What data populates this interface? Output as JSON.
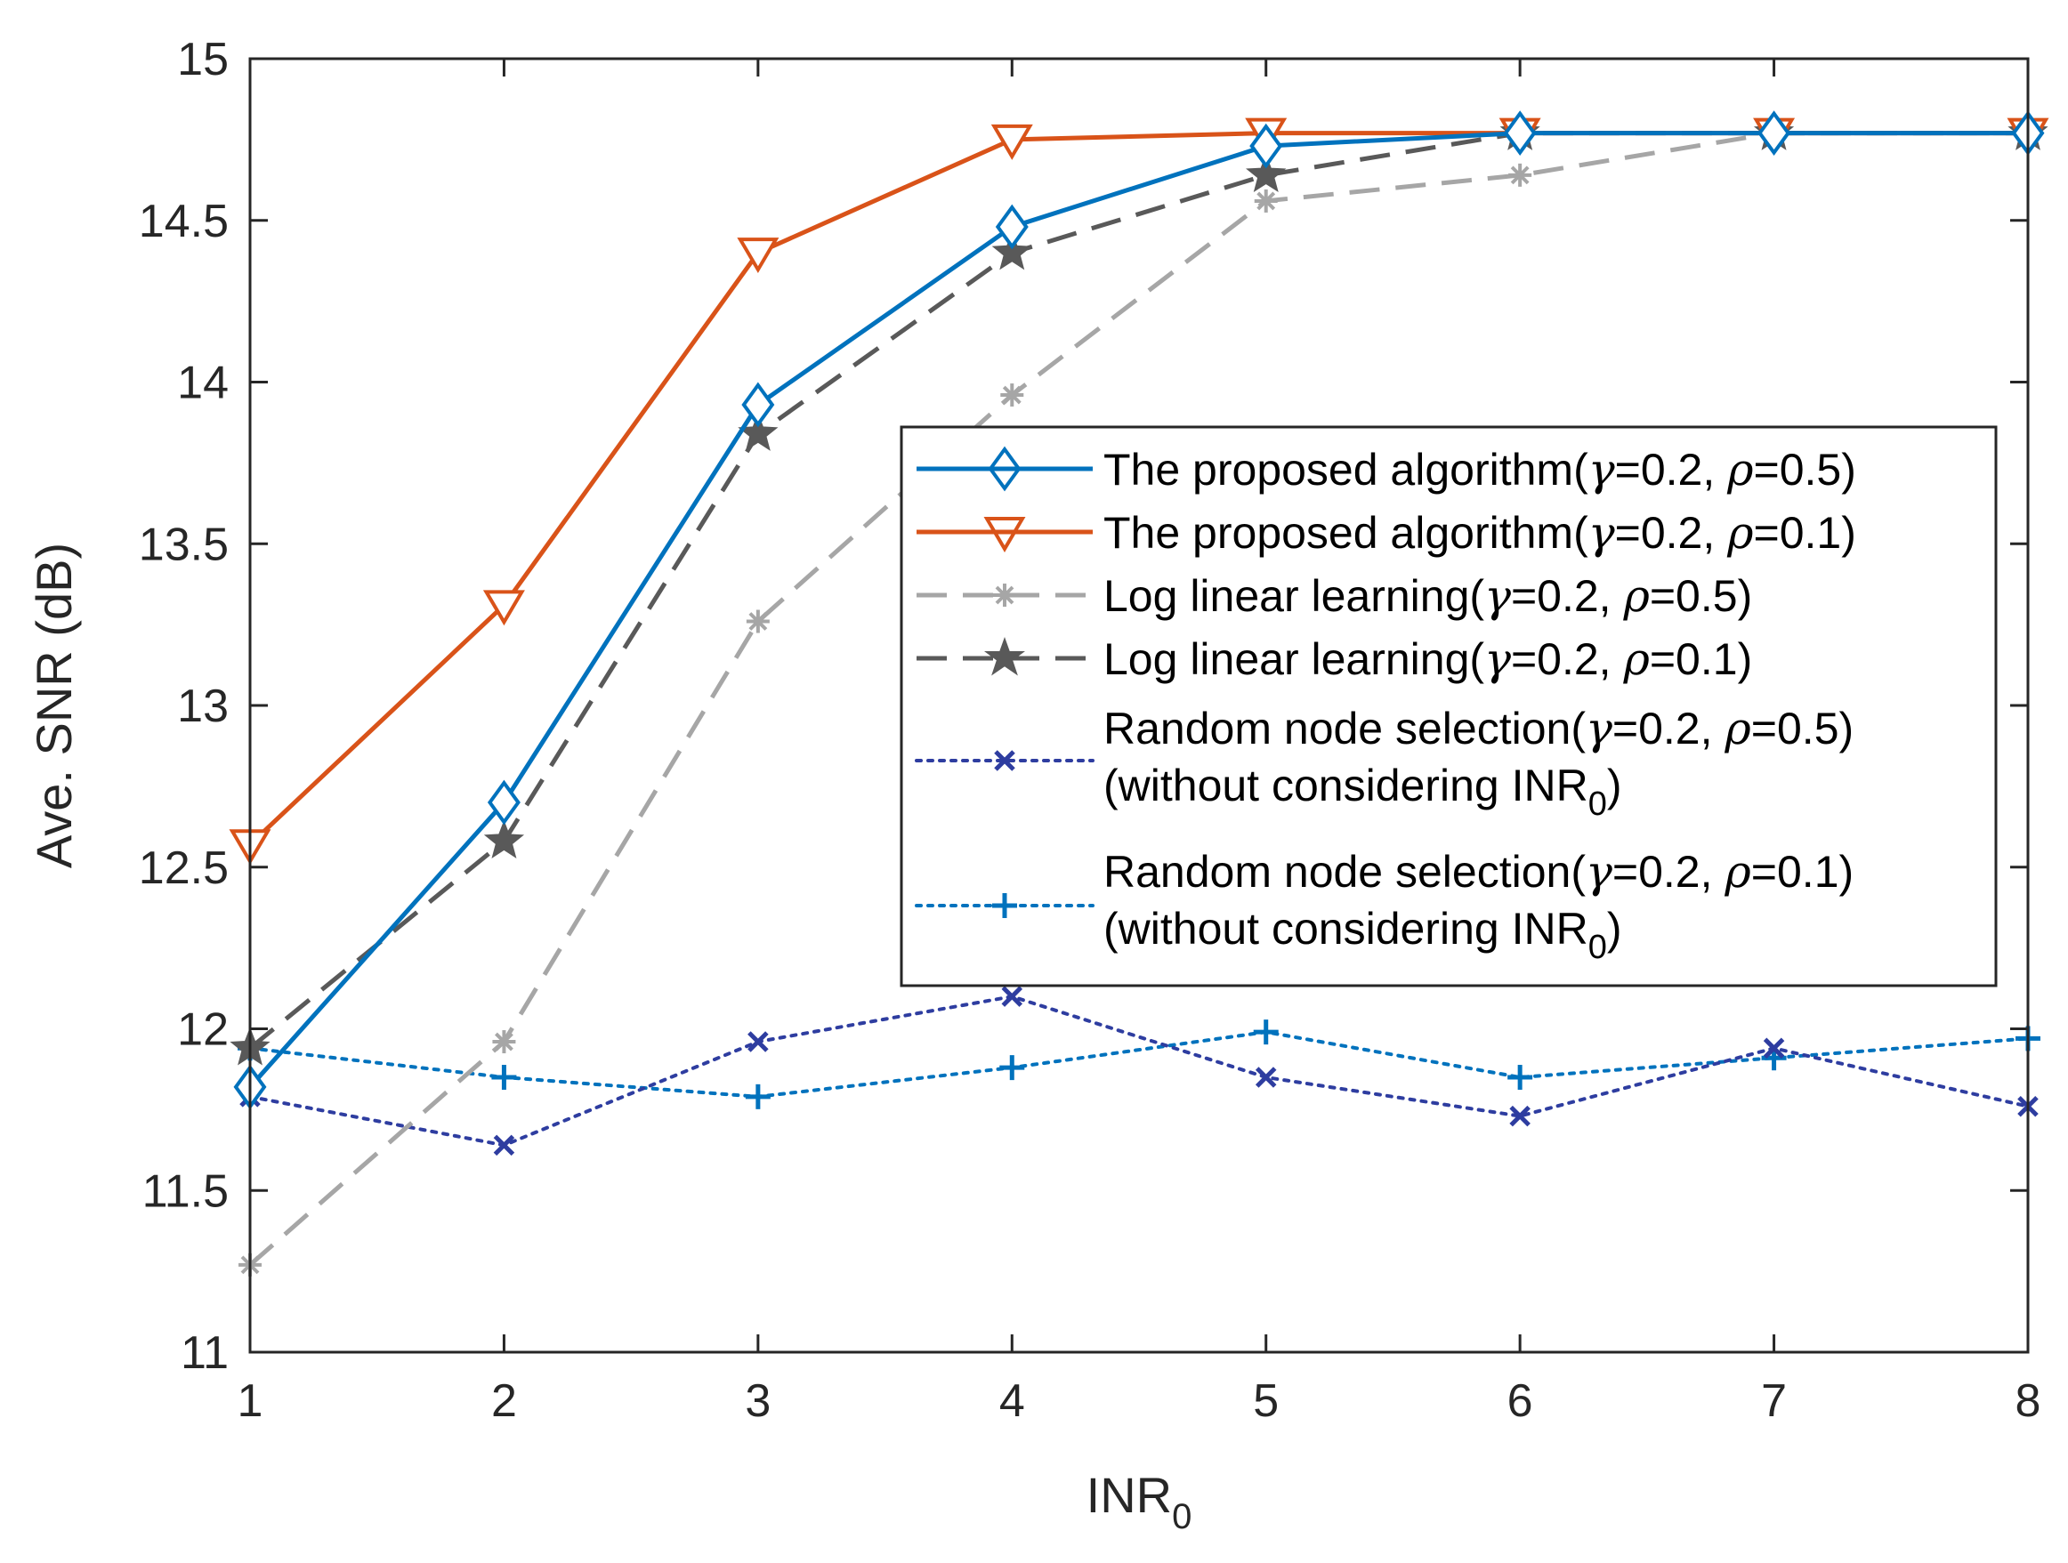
{
  "chart_data": {
    "type": "line",
    "x": [
      1,
      2,
      3,
      4,
      5,
      6,
      7,
      8
    ],
    "xlim": [
      1,
      8
    ],
    "ylim": [
      11,
      15
    ],
    "xticks": [
      "1",
      "2",
      "3",
      "4",
      "5",
      "6",
      "7",
      "8"
    ],
    "yticks": [
      "11",
      "11.5",
      "12",
      "12.5",
      "13",
      "13.5",
      "14",
      "14.5",
      "15"
    ],
    "ytick_values": [
      11,
      11.5,
      12,
      12.5,
      13,
      13.5,
      14,
      14.5,
      15
    ],
    "xlabel": "INR",
    "xlabel_sub": "0",
    "ylabel": "Ave. SNR (dB)",
    "grid": false,
    "legend_position": "center-right",
    "series": [
      {
        "id": "prop05",
        "name_pre": "The proposed algorithm(",
        "gamma_sym": "γ",
        "gamma_val": "=0.2, ",
        "rho_sym": "ρ",
        "rho_val": "=0.5)",
        "color": "#0072BD",
        "line": "solid",
        "marker": "diamond",
        "values": [
          11.82,
          12.7,
          13.93,
          14.48,
          14.73,
          14.77,
          14.77,
          14.77
        ]
      },
      {
        "id": "prop01",
        "name_pre": "The proposed algorithm(",
        "gamma_sym": "γ",
        "gamma_val": "=0.2, ",
        "rho_sym": "ρ",
        "rho_val": "=0.1)",
        "color": "#D95319",
        "line": "solid",
        "marker": "triangle-down",
        "values": [
          12.57,
          13.31,
          14.4,
          14.75,
          14.77,
          14.77,
          14.77,
          14.77
        ]
      },
      {
        "id": "log05",
        "name_pre": "Log linear learning(",
        "gamma_sym": "γ",
        "gamma_val": "=0.2, ",
        "rho_sym": "ρ",
        "rho_val": "=0.5)",
        "color": "#A6A6A6",
        "line": "dashed",
        "marker": "asterisk",
        "values": [
          11.27,
          11.96,
          13.26,
          13.96,
          14.56,
          14.64,
          14.77,
          14.77
        ]
      },
      {
        "id": "log01",
        "name_pre": "Log linear learning(",
        "gamma_sym": "γ",
        "gamma_val": "=0.2, ",
        "rho_sym": "ρ",
        "rho_val": "=0.1)",
        "color": "#595959",
        "line": "dashed",
        "marker": "star",
        "values": [
          11.94,
          12.58,
          13.84,
          14.4,
          14.64,
          14.77,
          14.77,
          14.77
        ]
      },
      {
        "id": "rand05",
        "name_pre": "Random node selection(",
        "gamma_sym": "γ",
        "gamma_val": "=0.2, ",
        "rho_sym": "ρ",
        "rho_val": "=0.5)",
        "name_line2": "(without considering INR",
        "name_line2_sub": "0",
        "name_line2_end": ")",
        "color": "#2E3DA0",
        "line": "dotted",
        "marker": "x",
        "values": [
          11.79,
          11.64,
          11.96,
          12.1,
          11.85,
          11.73,
          11.94,
          11.76
        ]
      },
      {
        "id": "rand01",
        "name_pre": "Random node selection(",
        "gamma_sym": "γ",
        "gamma_val": "=0.2, ",
        "rho_sym": "ρ",
        "rho_val": "=0.1)",
        "name_line2": "(without considering INR",
        "name_line2_sub": "0",
        "name_line2_end": ")",
        "color": "#0072BD",
        "line": "dotted",
        "marker": "plus",
        "values": [
          11.94,
          11.85,
          11.79,
          11.88,
          11.99,
          11.85,
          11.91,
          11.97
        ]
      }
    ]
  }
}
